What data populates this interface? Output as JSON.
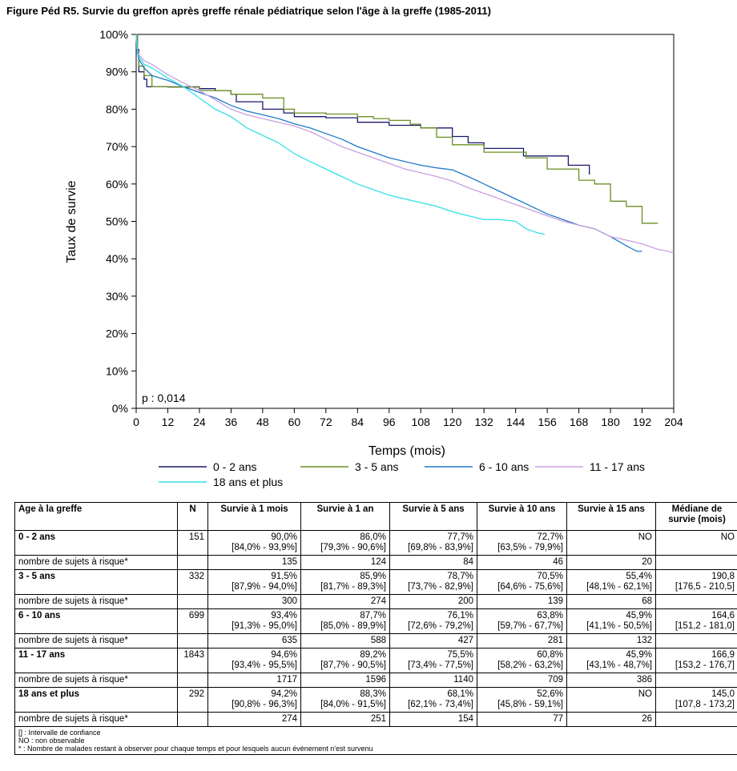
{
  "title": "Figure Péd R5. Survie du greffon après greffe rénale pédiatrique selon l'âge à la greffe (1985-2011)",
  "chart_data": {
    "type": "line",
    "title": "Figure Péd R5. Survie du greffon après greffe rénale pédiatrique selon l'âge à la greffe (1985-2011)",
    "xlabel": "Temps (mois)",
    "ylabel": "Taux de survie",
    "xlim": [
      0,
      204
    ],
    "ylim": [
      0,
      100
    ],
    "x_ticks": [
      0,
      12,
      24,
      36,
      48,
      60,
      72,
      84,
      96,
      108,
      120,
      132,
      144,
      156,
      168,
      180,
      192,
      204
    ],
    "y_ticks": [
      0,
      10,
      20,
      30,
      40,
      50,
      60,
      70,
      80,
      90,
      100
    ],
    "y_tick_labels": [
      "0%",
      "10%",
      "20%",
      "30%",
      "40%",
      "50%",
      "60%",
      "70%",
      "80%",
      "90%",
      "100%"
    ],
    "annotation": "p : 0,014",
    "grid": false,
    "legend_position": "bottom",
    "series": [
      {
        "name": "0 - 2 ans",
        "color": "#1a1a6e",
        "step": true,
        "points": [
          [
            0,
            100
          ],
          [
            0.5,
            96
          ],
          [
            1,
            90
          ],
          [
            3,
            88
          ],
          [
            4,
            86
          ],
          [
            8,
            86
          ],
          [
            10,
            86
          ],
          [
            24,
            85.5
          ],
          [
            30,
            85
          ],
          [
            36,
            84
          ],
          [
            38,
            82
          ],
          [
            48,
            80
          ],
          [
            56,
            79
          ],
          [
            60,
            78
          ],
          [
            72,
            77.7
          ],
          [
            84,
            76.5
          ],
          [
            96,
            75.7
          ],
          [
            108,
            75
          ],
          [
            120,
            72.7
          ],
          [
            126,
            71
          ],
          [
            132,
            69.5
          ],
          [
            144,
            69.5
          ],
          [
            147,
            67.5
          ],
          [
            156,
            67.5
          ],
          [
            164,
            65
          ],
          [
            168,
            65
          ],
          [
            172,
            62.5
          ]
        ]
      },
      {
        "name": "3 - 5 ans",
        "color": "#6b8e23",
        "step": true,
        "points": [
          [
            0,
            100
          ],
          [
            0.5,
            95
          ],
          [
            1,
            91.5
          ],
          [
            3,
            89
          ],
          [
            6,
            86
          ],
          [
            12,
            85.9
          ],
          [
            24,
            85
          ],
          [
            36,
            84
          ],
          [
            48,
            83
          ],
          [
            56,
            80
          ],
          [
            60,
            79
          ],
          [
            72,
            78.7
          ],
          [
            84,
            78
          ],
          [
            90,
            77.5
          ],
          [
            96,
            77
          ],
          [
            104,
            76
          ],
          [
            108,
            75
          ],
          [
            114,
            72.5
          ],
          [
            120,
            70.5
          ],
          [
            132,
            68.5
          ],
          [
            144,
            68.5
          ],
          [
            148,
            67
          ],
          [
            156,
            64
          ],
          [
            168,
            61
          ],
          [
            174,
            60
          ],
          [
            180,
            55.4
          ],
          [
            186,
            54
          ],
          [
            192,
            49.5
          ],
          [
            198,
            49.5
          ]
        ]
      },
      {
        "name": "6 - 10 ans",
        "color": "#1f78c8",
        "step": false,
        "points": [
          [
            0,
            100
          ],
          [
            0.3,
            96
          ],
          [
            1,
            93.4
          ],
          [
            3,
            91
          ],
          [
            6,
            89
          ],
          [
            12,
            87.7
          ],
          [
            18,
            86
          ],
          [
            24,
            84.5
          ],
          [
            30,
            83
          ],
          [
            36,
            81
          ],
          [
            42,
            79.5
          ],
          [
            48,
            78.5
          ],
          [
            54,
            77.5
          ],
          [
            60,
            76.1
          ],
          [
            66,
            75
          ],
          [
            72,
            73.5
          ],
          [
            78,
            72
          ],
          [
            84,
            70
          ],
          [
            90,
            68.5
          ],
          [
            96,
            67
          ],
          [
            102,
            66
          ],
          [
            108,
            65
          ],
          [
            114,
            64.3
          ],
          [
            120,
            63.8
          ],
          [
            126,
            62
          ],
          [
            132,
            60
          ],
          [
            138,
            58
          ],
          [
            144,
            56
          ],
          [
            150,
            54
          ],
          [
            156,
            52
          ],
          [
            162,
            50.5
          ],
          [
            168,
            49
          ],
          [
            174,
            48
          ],
          [
            180,
            45.9
          ],
          [
            186,
            43.5
          ],
          [
            190,
            42
          ],
          [
            192,
            42
          ]
        ]
      },
      {
        "name": "11 - 17 ans",
        "color": "#c8a0e0",
        "step": false,
        "points": [
          [
            0,
            100
          ],
          [
            0.3,
            97
          ],
          [
            1,
            94.6
          ],
          [
            3,
            93
          ],
          [
            6,
            92
          ],
          [
            12,
            89.2
          ],
          [
            18,
            87
          ],
          [
            24,
            85
          ],
          [
            30,
            82.5
          ],
          [
            36,
            80
          ],
          [
            42,
            78.5
          ],
          [
            48,
            77.5
          ],
          [
            54,
            76.5
          ],
          [
            60,
            75.5
          ],
          [
            66,
            74
          ],
          [
            72,
            72
          ],
          [
            78,
            70
          ],
          [
            84,
            68.5
          ],
          [
            90,
            67
          ],
          [
            96,
            65.5
          ],
          [
            102,
            64
          ],
          [
            108,
            63
          ],
          [
            114,
            62
          ],
          [
            120,
            60.8
          ],
          [
            126,
            59
          ],
          [
            132,
            57.5
          ],
          [
            138,
            56
          ],
          [
            144,
            54.5
          ],
          [
            150,
            53
          ],
          [
            156,
            51.5
          ],
          [
            162,
            50
          ],
          [
            168,
            49
          ],
          [
            174,
            48
          ],
          [
            180,
            45.9
          ],
          [
            186,
            45
          ],
          [
            192,
            44
          ],
          [
            198,
            42.5
          ],
          [
            202,
            42
          ],
          [
            204,
            41.5
          ]
        ]
      },
      {
        "name": "18 ans et plus",
        "color": "#33e0e8",
        "step": false,
        "points": [
          [
            0,
            100
          ],
          [
            0.3,
            96
          ],
          [
            1,
            94.2
          ],
          [
            3,
            92
          ],
          [
            6,
            91
          ],
          [
            12,
            88.3
          ],
          [
            18,
            86
          ],
          [
            24,
            83
          ],
          [
            30,
            80
          ],
          [
            36,
            78
          ],
          [
            42,
            75
          ],
          [
            48,
            73
          ],
          [
            54,
            71
          ],
          [
            60,
            68.1
          ],
          [
            66,
            66
          ],
          [
            72,
            64
          ],
          [
            78,
            62
          ],
          [
            84,
            60
          ],
          [
            90,
            58.5
          ],
          [
            96,
            57
          ],
          [
            102,
            56
          ],
          [
            108,
            55
          ],
          [
            114,
            54
          ],
          [
            120,
            52.6
          ],
          [
            126,
            51.5
          ],
          [
            132,
            50.5
          ],
          [
            138,
            50.5
          ],
          [
            144,
            50
          ],
          [
            148,
            48
          ],
          [
            152,
            47
          ],
          [
            155,
            46.5
          ]
        ]
      }
    ]
  },
  "table": {
    "headers": [
      "Age à la greffe",
      "N",
      "Survie à 1 mois",
      "Survie à 1 an",
      "Survie à 5 ans",
      "Survie à 10 ans",
      "Survie à 15 ans",
      "Médiane de survie (mois)"
    ],
    "risk_label": "nombre de sujets à risque*",
    "groups": [
      {
        "label": "0 - 2 ans",
        "n": "151",
        "values": [
          "90,0%",
          "86,0%",
          "77,7%",
          "72,7%",
          "NO",
          "NO"
        ],
        "ci": [
          "[84,0% - 93,9%]",
          "[79,3% - 90,6%]",
          "[69,8% - 83,9%]",
          "[63,5% - 79,9%]",
          "",
          ""
        ],
        "risk": [
          "135",
          "124",
          "84",
          "46",
          "20",
          ""
        ]
      },
      {
        "label": "3 - 5 ans",
        "n": "332",
        "values": [
          "91,5%",
          "85,9%",
          "78,7%",
          "70,5%",
          "55,4%",
          "190,8"
        ],
        "ci": [
          "[87,9% - 94,0%]",
          "[81,7% - 89,3%]",
          "[73,7% - 82,9%]",
          "[64,6% - 75,6%]",
          "[48,1% - 62,1%]",
          "[176,5 - 210,5]"
        ],
        "risk": [
          "300",
          "274",
          "200",
          "139",
          "68",
          ""
        ]
      },
      {
        "label": "6 - 10 ans",
        "n": "699",
        "values": [
          "93,4%",
          "87,7%",
          "76,1%",
          "63,8%",
          "45,9%",
          "164,6"
        ],
        "ci": [
          "[91,3% - 95,0%]",
          "[85,0% - 89,9%]",
          "[72,6% - 79,2%]",
          "[59,7% - 67,7%]",
          "[41,1% - 50,5%]",
          "[151,2 - 181,0]"
        ],
        "risk": [
          "635",
          "588",
          "427",
          "281",
          "132",
          ""
        ]
      },
      {
        "label": "11 - 17 ans",
        "n": "1843",
        "values": [
          "94,6%",
          "89,2%",
          "75,5%",
          "60,8%",
          "45,9%",
          "166,9"
        ],
        "ci": [
          "[93,4% - 95,5%]",
          "[87,7% - 90,5%]",
          "[73,4% - 77,5%]",
          "[58,2% - 63,2%]",
          "[43,1% - 48,7%]",
          "[153,2 - 176,7]"
        ],
        "risk": [
          "1717",
          "1596",
          "1140",
          "709",
          "386",
          ""
        ]
      },
      {
        "label": "18 ans et plus",
        "n": "292",
        "values": [
          "94,2%",
          "88,3%",
          "68,1%",
          "52,6%",
          "NO",
          "145,0"
        ],
        "ci": [
          "[90,8% - 96,3%]",
          "[84,0% - 91,5%]",
          "[62,1% - 73,4%]",
          "[45,8% - 59,1%]",
          "",
          "[107,8 - 173,2]"
        ],
        "risk": [
          "274",
          "251",
          "154",
          "77",
          "26",
          ""
        ]
      }
    ],
    "notes": [
      "[] : Intervalle de confiance",
      "NO : non observable",
      "* : Nombre de malades restant à observer pour chaque temps et pour lesquels aucun évènement n'est survenu"
    ]
  }
}
